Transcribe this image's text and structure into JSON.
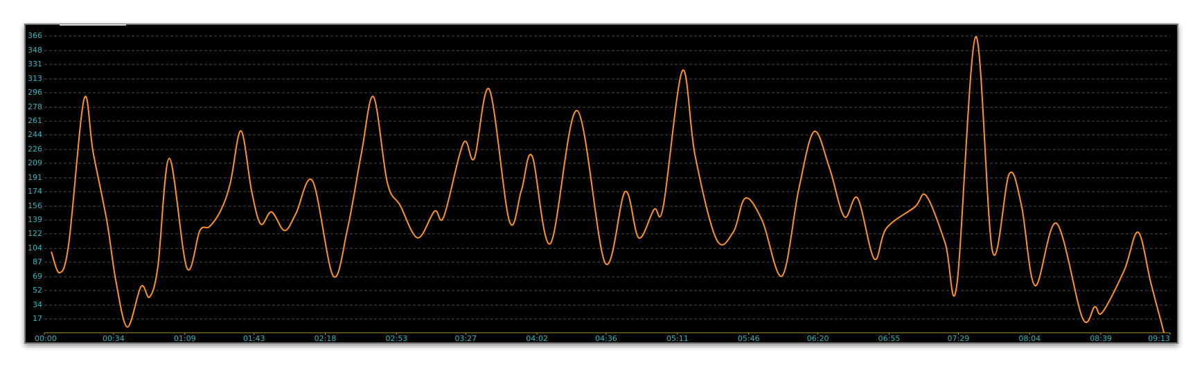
{
  "chart_data": {
    "type": "line",
    "x": [
      3.4,
      7.5,
      12,
      19.5,
      24,
      30.7,
      35.2,
      40.8,
      47.5,
      51.7,
      55.8,
      61.4,
      70,
      76.4,
      81.2,
      86.9,
      91.4,
      96.6,
      101.8,
      106.3,
      111.6,
      118,
      123.6,
      131.8,
      141.9,
      149,
      155.8,
      161.7,
      168.5,
      174.8,
      183.4,
      191.7,
      196.2,
      205.9,
      211.2,
      218.6,
      228.4,
      234.4,
      239.6,
      248.6,
      261.7,
      275.5,
      285.3,
      292,
      299.5,
      304,
      313.4,
      319.7,
      330.2,
      338.4,
      344.4,
      352.7,
      362.4,
      370.6,
      378.1,
      385.6,
      393,
      399.5,
      407.7,
      413.7,
      427.6,
      433.2,
      442.6,
      448.2,
      457.5,
      465.8,
      474,
      480,
      486.7,
      497.2,
      510,
      516,
      519.7,
      530.5,
      537.3,
      543.6,
      550
    ],
    "series": [
      {
        "color": "#ff9422",
        "values": [
          100,
          74,
          110,
          288,
          222,
          138,
          63,
          7,
          57,
          44,
          82,
          215,
          80,
          126,
          131,
          152,
          185,
          249,
          175,
          134,
          149,
          126,
          147,
          187,
          70,
          129,
          222,
          291,
          185,
          157,
          117,
          150,
          143,
          234,
          215,
          300,
          138,
          176,
          218,
          110,
          274,
          86,
          174,
          117,
          152,
          155,
          323,
          218,
          115,
          124,
          166,
          138,
          70,
          177,
          248,
          204,
          143,
          166,
          91,
          129,
          155,
          169,
          110,
          58,
          365,
          100,
          196,
          157,
          58,
          135,
          18,
          32,
          25,
          77,
          124,
          61,
          0
        ]
      }
    ],
    "xlim": [
      0,
      553
    ],
    "xticks": [
      {
        "value": 0,
        "label": "00:00"
      },
      {
        "value": 34,
        "label": "00:34"
      },
      {
        "value": 69,
        "label": "01:09"
      },
      {
        "value": 103,
        "label": "01:43"
      },
      {
        "value": 138,
        "label": "02:18"
      },
      {
        "value": 173,
        "label": "02:53"
      },
      {
        "value": 207,
        "label": "03:27"
      },
      {
        "value": 242,
        "label": "04:02"
      },
      {
        "value": 276,
        "label": "04:36"
      },
      {
        "value": 311,
        "label": "05:11"
      },
      {
        "value": 346,
        "label": "05:46"
      },
      {
        "value": 380,
        "label": "06:20"
      },
      {
        "value": 415,
        "label": "06:55"
      },
      {
        "value": 449,
        "label": "07:29"
      },
      {
        "value": 484,
        "label": "08:04"
      },
      {
        "value": 519,
        "label": "08:39"
      },
      {
        "value": 553,
        "label": "09:13"
      }
    ],
    "ylim": [
      0,
      366
    ],
    "yticks": [
      17,
      34,
      52,
      69,
      87,
      104,
      122,
      139,
      156,
      174,
      191,
      209,
      226,
      244,
      261,
      278,
      296,
      313,
      331,
      348,
      366
    ],
    "grid": true
  }
}
